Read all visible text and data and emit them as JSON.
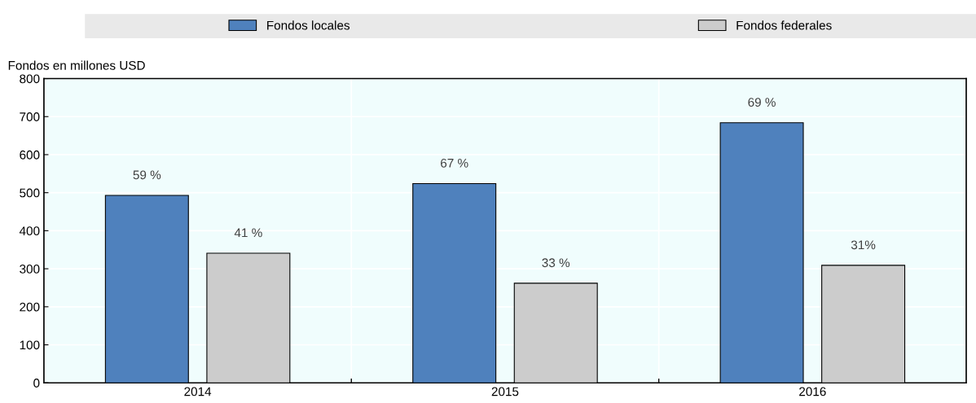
{
  "chart_data": {
    "type": "bar",
    "ylabel": "Fondos en millones USD",
    "categories": [
      "2014",
      "2015",
      "2016"
    ],
    "series": [
      {
        "name": "Fondos locales",
        "color": "#4f81bd",
        "values": [
          493,
          524,
          684
        ]
      },
      {
        "name": "Fondos federales",
        "color": "#cccccc",
        "values": [
          341,
          262,
          309
        ]
      }
    ],
    "annotations": [
      "59 %",
      "41 %",
      "67 %",
      "33 %",
      "69 %",
      "31%"
    ],
    "ylim": [
      0,
      800
    ],
    "yticks": [
      0,
      100,
      200,
      300,
      400,
      500,
      600,
      700,
      800
    ],
    "grid": true,
    "legend": "top"
  }
}
